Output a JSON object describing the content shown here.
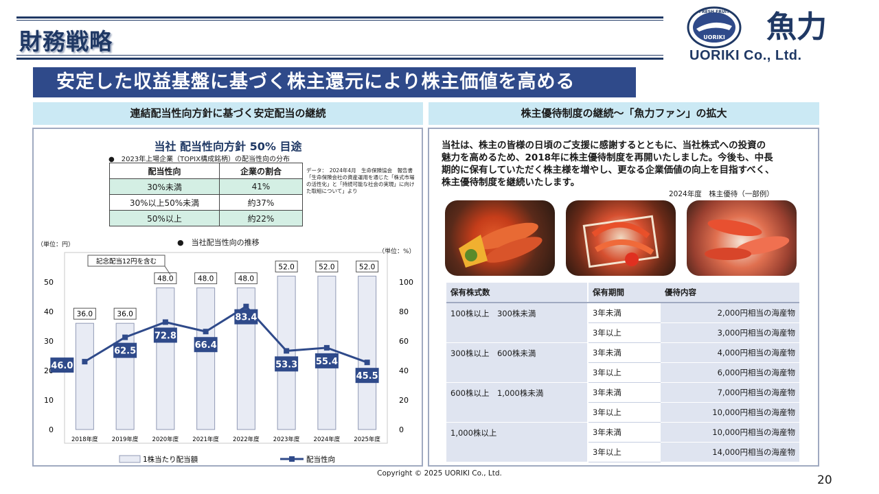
{
  "header": {
    "title": "財務戦略",
    "logo_mark_text": "FRESH FRUIT",
    "logo_mark_inner": "UORIKI",
    "logo_kanji": "魚力",
    "company": "UORIKI Co., Ltd."
  },
  "headline": "安定した収益基盤に基づく株主還元により株主価値を高める",
  "left_panel": {
    "heading": "連結配当性向方針に基づく安定配当の継続",
    "policy_title": "当社 配当性向方針 50% 目途",
    "dist_caption": "●　2023年上場企業（TOPIX構成銘柄）の配当性向の分布",
    "table": {
      "headers": [
        "配当性向",
        "企業の割合"
      ],
      "rows": [
        [
          "30%未満",
          "41%"
        ],
        [
          "30%以上50%未満",
          "約37%"
        ],
        [
          "50%以上",
          "約22%"
        ]
      ]
    },
    "source_note": "データ：　2024年4月　生命保険協会　報告書「生命保険会社の資産運用を通じた「株式市場の活性化」と「持続可能な社会の実現」に向けた取組について」より",
    "chart_caption": "●　当社配当性向の推移",
    "left_unit": "（単位：円）",
    "right_unit": "（単位：%）",
    "callout": "記念配当12円を含む"
  },
  "chart_data": {
    "type": "bar",
    "categories": [
      "2018年度",
      "2019年度",
      "2020年度",
      "2021年度",
      "2022年度",
      "2023年度",
      "2024年度",
      "2025年度"
    ],
    "series": [
      {
        "name": "1株当たり配当額",
        "type": "bar",
        "axis": "left",
        "values": [
          36.0,
          36.0,
          48.0,
          48.0,
          48.0,
          52.0,
          52.0,
          52.0
        ],
        "labels": [
          "36.0",
          "36.0",
          "48.0",
          "48.0",
          "48.0",
          "52.0",
          "52.0",
          "52.0"
        ]
      },
      {
        "name": "配当性向",
        "type": "line",
        "axis": "right",
        "values": [
          46.0,
          62.5,
          72.8,
          66.4,
          83.4,
          53.3,
          55.4,
          45.5
        ],
        "labels": [
          "46.0",
          "62.5",
          "72.8",
          "66.4",
          "83.4",
          "53.3",
          "55.4",
          "45.5"
        ]
      }
    ],
    "left_axis": {
      "ticks": [
        "0",
        "10",
        "20",
        "30",
        "40",
        "50"
      ],
      "ylim": [
        0,
        60
      ]
    },
    "right_axis": {
      "ticks": [
        "0",
        "20",
        "40",
        "60",
        "80",
        "100"
      ],
      "ylim": [
        0,
        120
      ]
    },
    "legend_position": "bottom",
    "colors": {
      "bar_fill": "#e8ebf4",
      "bar_stroke": "#9099b5",
      "line": "#2f4a8a",
      "label_box": "#2f4a8a"
    }
  },
  "right_panel": {
    "heading": "株主優待制度の継続〜「魚力ファン」の拡大",
    "text_lines": [
      "当社は、株主の皆様の日頃のご支援に感謝するとともに、当社株式への投資の",
      "魅力を高めるため、2018年に株主優待制度を再開いたしました。今後も、中長",
      "期的に保有していただく株主様を増やし、更なる企業価値の向上を目指すべく、",
      "株主優待制度を継続いたします。"
    ],
    "photo_caption": "2024年度　株主優待（一部例）",
    "table": {
      "headers": [
        "保有株式数",
        "保有期間",
        "優待内容"
      ],
      "groups": [
        {
          "shares": "100株以上　300株未満",
          "rows": [
            [
              "3年未満",
              "2,000円相当の海産物"
            ],
            [
              "3年以上",
              "3,000円相当の海産物"
            ]
          ]
        },
        {
          "shares": "300株以上　600株未満",
          "rows": [
            [
              "3年未満",
              "4,000円相当の海産物"
            ],
            [
              "3年以上",
              "6,000円相当の海産物"
            ]
          ]
        },
        {
          "shares": "600株以上　1,000株未満",
          "rows": [
            [
              "3年未満",
              "7,000円相当の海産物"
            ],
            [
              "3年以上",
              "10,000円相当の海産物"
            ]
          ]
        },
        {
          "shares": "1,000株以上",
          "rows": [
            [
              "3年未満",
              "10,000円相当の海産物"
            ],
            [
              "3年以上",
              "14,000円相当の海産物"
            ]
          ]
        }
      ]
    }
  },
  "footer": {
    "copyright": "Copyright © 2025 UORIKI Co., Ltd.",
    "page_number": "20"
  }
}
